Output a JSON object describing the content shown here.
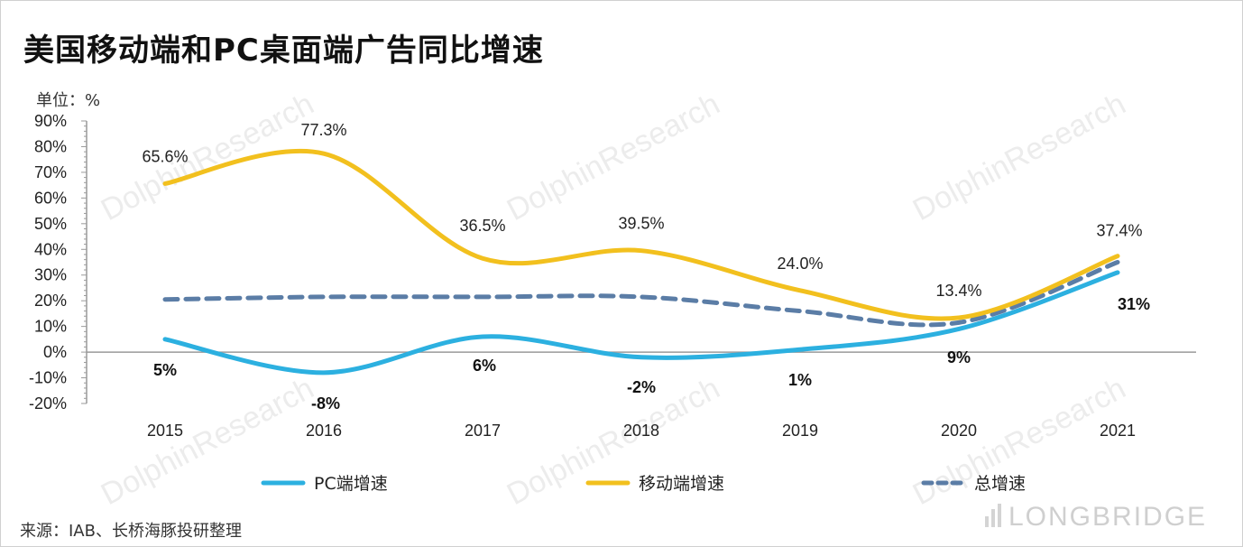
{
  "title": "美国移动端和PC桌面端广告同比增速",
  "unit_label": "单位：%",
  "source": "来源：IAB、长桥海豚投研整理",
  "watermark": {
    "text": "DolphinResearch",
    "brand": "LONGBRIDGE"
  },
  "colors": {
    "pc": "#2cb0e0",
    "mobile": "#f2c01e",
    "total": "#5b7da6",
    "axis": "#9a9a9a"
  },
  "chart_data": {
    "type": "line",
    "categories": [
      "2015",
      "2016",
      "2017",
      "2018",
      "2019",
      "2020",
      "2021"
    ],
    "ylim": [
      -20,
      90
    ],
    "yticks": [
      "90%",
      "80%",
      "70%",
      "60%",
      "50%",
      "40%",
      "30%",
      "20%",
      "10%",
      "0%",
      "-10%",
      "-20%"
    ],
    "ytick_values": [
      90,
      80,
      70,
      60,
      50,
      40,
      30,
      20,
      10,
      0,
      -10,
      -20
    ],
    "grid": false,
    "legend_position": "bottom",
    "series": [
      {
        "name": "PC端增速",
        "values": [
          5,
          -8,
          6,
          -2,
          1,
          9,
          31
        ],
        "labels": [
          "5%",
          "-8%",
          "6%",
          "-2%",
          "1%",
          "9%",
          "31%"
        ],
        "style": "solid",
        "color_key": "pc"
      },
      {
        "name": "移动端增速",
        "values": [
          65.6,
          77.3,
          36.5,
          39.5,
          24.0,
          13.4,
          37.4
        ],
        "labels": [
          "65.6%",
          "77.3%",
          "36.5%",
          "39.5%",
          "24.0%",
          "13.4%",
          "37.4%"
        ],
        "style": "solid",
        "color_key": "mobile"
      },
      {
        "name": "总增速",
        "values": [
          20.5,
          21.5,
          21.5,
          21.5,
          16,
          11.5,
          35
        ],
        "labels": [],
        "style": "dashed",
        "color_key": "total"
      }
    ]
  }
}
